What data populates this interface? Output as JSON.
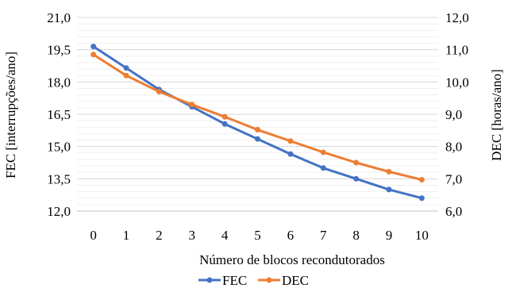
{
  "chart_data": {
    "type": "line",
    "x": [
      0,
      1,
      2,
      3,
      4,
      5,
      6,
      7,
      8,
      9,
      10
    ],
    "xlabel": "Número de blocos recondutorados",
    "ylabel": "FEC [interrupções/ano]",
    "y2label": "DEC [horas/ano]",
    "ylim": [
      12.0,
      21.0
    ],
    "y2lim": [
      6.0,
      12.0
    ],
    "y_ticks": [
      "12,0",
      "13,5",
      "15,0",
      "16,5",
      "18,0",
      "19,5",
      "21,0"
    ],
    "y2_ticks": [
      "6,0",
      "7,0",
      "8,0",
      "9,0",
      "10,0",
      "11,0",
      "12,0"
    ],
    "x_ticks": [
      "0",
      "1",
      "2",
      "3",
      "4",
      "5",
      "6",
      "7",
      "8",
      "9",
      "10"
    ],
    "grid": true,
    "legend_position": "bottom",
    "series": [
      {
        "name": "FEC",
        "axis": "left",
        "color": "#4472c4",
        "values": [
          19.65,
          18.65,
          17.65,
          16.85,
          16.05,
          15.35,
          14.65,
          14.0,
          13.5,
          13.0,
          12.6
        ]
      },
      {
        "name": "DEC",
        "axis": "right",
        "color": "#ed7d31",
        "values": [
          10.85,
          10.2,
          9.7,
          9.3,
          8.92,
          8.52,
          8.17,
          7.82,
          7.5,
          7.22,
          6.97
        ]
      }
    ]
  }
}
